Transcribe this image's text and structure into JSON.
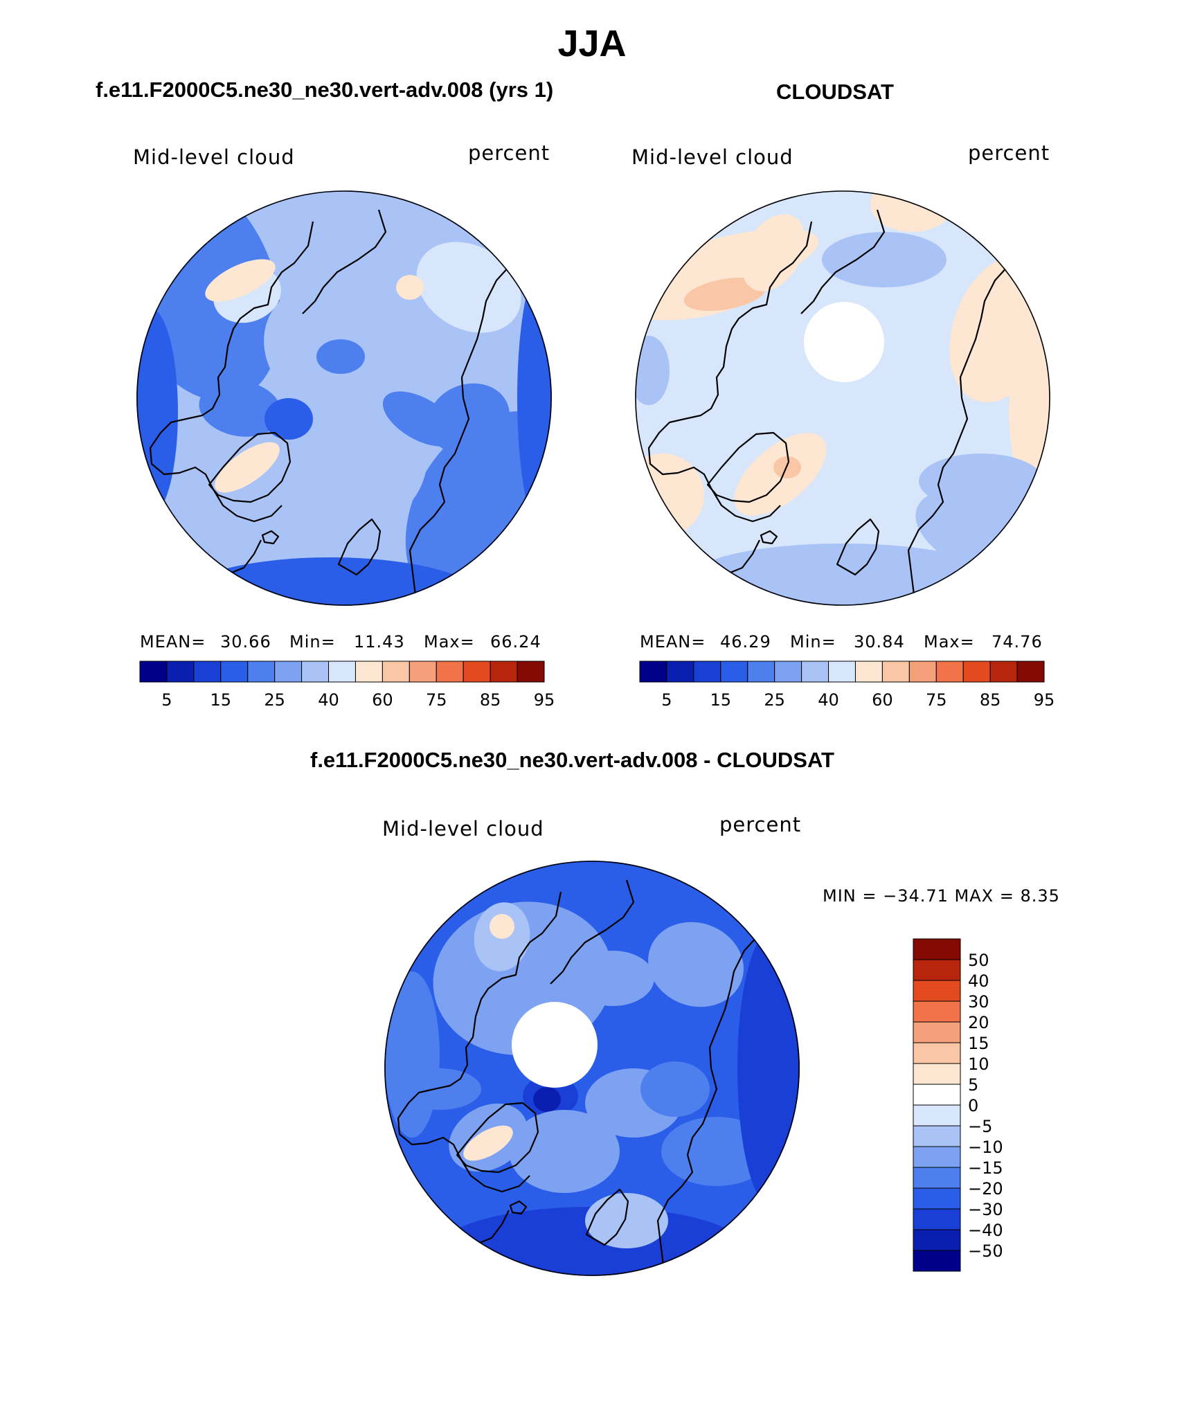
{
  "chart_data": {
    "type": "heatmap",
    "title": "JJA",
    "panels": [
      {
        "title": "f.e11.F2000C5.ne30_ne30.vert-adv.008 (yrs 1)",
        "field_label": "Mid-level cloud",
        "units": "percent",
        "projection": "north-polar-stereographic",
        "stats": {
          "mean_label": "MEAN=",
          "mean": "30.66",
          "min_label": "Min=",
          "min": "11.43",
          "max_label": "Max=",
          "max": "66.24"
        },
        "colorbar": {
          "orientation": "horizontal",
          "tick_labels": [
            "5",
            "15",
            "25",
            "40",
            "60",
            "75",
            "85",
            "95"
          ]
        }
      },
      {
        "title": "CLOUDSAT",
        "field_label": "Mid-level cloud",
        "units": "percent",
        "projection": "north-polar-stereographic",
        "polar_gap": true,
        "stats": {
          "mean_label": "MEAN=",
          "mean": "46.29",
          "min_label": "Min=",
          "min": "30.84",
          "max_label": "Max=",
          "max": "74.76"
        },
        "colorbar": {
          "orientation": "horizontal",
          "tick_labels": [
            "5",
            "15",
            "25",
            "40",
            "60",
            "75",
            "85",
            "95"
          ]
        }
      },
      {
        "title": "f.e11.F2000C5.ne30_ne30.vert-adv.008 - CLOUDSAT",
        "field_label": "Mid-level cloud",
        "units": "percent",
        "projection": "north-polar-stereographic",
        "polar_gap": true,
        "stats_text": "MIN = −34.71 MAX =    8.35",
        "colorbar": {
          "orientation": "vertical",
          "tick_labels": [
            "50",
            "40",
            "30",
            "20",
            "15",
            "10",
            "5",
            "0",
            "−5",
            "−10",
            "−15",
            "−20",
            "−30",
            "−40",
            "−50"
          ]
        }
      }
    ],
    "colors": {
      "abs_scale": [
        "#00008a",
        "#0a1fb0",
        "#1a3fd6",
        "#2b5ee8",
        "#4d7fee",
        "#7da2f2",
        "#a9c3f6",
        "#d7e6fb",
        "#fde6d2",
        "#f9c6a6",
        "#f4a07a",
        "#f0734a",
        "#e34a1f",
        "#b8250d",
        "#830a00"
      ],
      "diff_scale": [
        "#830a00",
        "#b8250d",
        "#e34a1f",
        "#f0734a",
        "#f4a07a",
        "#f9c6a6",
        "#fde6d2",
        "#ffffff",
        "#d7e6fb",
        "#a9c3f6",
        "#7da2f2",
        "#4d7fee",
        "#2b5ee8",
        "#1a3fd6",
        "#0a1fb0",
        "#00008a"
      ]
    }
  }
}
